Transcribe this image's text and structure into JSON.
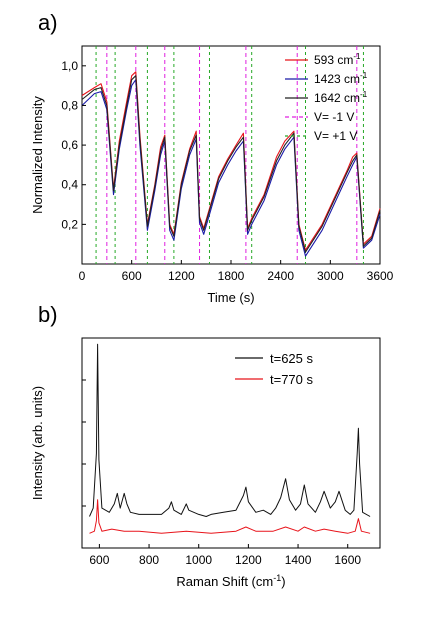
{
  "panels": {
    "a_label": "a)",
    "b_label": "b)"
  },
  "chart_data": [
    {
      "type": "line",
      "xlabel": "Time (s)",
      "ylabel": "Normalized Intensity",
      "xlim": [
        0,
        3600
      ],
      "ylim": [
        0,
        1.1
      ],
      "xticks": [
        "0",
        "600",
        "1200",
        "1800",
        "2400",
        "3000",
        "3600"
      ],
      "yticks": [
        "0,2",
        "0,4",
        "0,6",
        "0,8",
        "1,0"
      ],
      "legend_position": "top-right",
      "series": [
        {
          "name": "593 cm",
          "name_superscript": "-1",
          "color": "#e8141b",
          "x": [
            0,
            150,
            230,
            300,
            380,
            450,
            540,
            600,
            650,
            700,
            790,
            880,
            950,
            1000,
            1060,
            1110,
            1200,
            1300,
            1380,
            1420,
            1470,
            1540,
            1650,
            1760,
            1860,
            1950,
            2000,
            2050,
            2200,
            2350,
            2450,
            2560,
            2620,
            2700,
            2900,
            3100,
            3200,
            3270,
            3320,
            3400,
            3500,
            3600
          ],
          "y": [
            0.85,
            0.89,
            0.91,
            0.82,
            0.38,
            0.62,
            0.82,
            0.95,
            0.97,
            0.65,
            0.2,
            0.4,
            0.59,
            0.65,
            0.2,
            0.15,
            0.41,
            0.58,
            0.67,
            0.24,
            0.18,
            0.28,
            0.44,
            0.53,
            0.6,
            0.66,
            0.18,
            0.23,
            0.35,
            0.54,
            0.62,
            0.67,
            0.2,
            0.07,
            0.2,
            0.38,
            0.47,
            0.54,
            0.56,
            0.1,
            0.14,
            0.28
          ]
        },
        {
          "name": "1423 cm",
          "name_superscript": "-1",
          "color": "#1a1aa8",
          "x": [
            0,
            150,
            230,
            300,
            380,
            450,
            540,
            600,
            650,
            700,
            790,
            880,
            950,
            1000,
            1060,
            1110,
            1200,
            1300,
            1380,
            1420,
            1470,
            1540,
            1650,
            1760,
            1860,
            1950,
            2000,
            2050,
            2200,
            2350,
            2450,
            2560,
            2620,
            2700,
            2900,
            3100,
            3200,
            3270,
            3320,
            3400,
            3500,
            3600
          ],
          "y": [
            0.8,
            0.86,
            0.87,
            0.78,
            0.35,
            0.58,
            0.78,
            0.9,
            0.93,
            0.6,
            0.17,
            0.37,
            0.55,
            0.62,
            0.17,
            0.12,
            0.38,
            0.55,
            0.63,
            0.21,
            0.15,
            0.25,
            0.41,
            0.5,
            0.57,
            0.62,
            0.15,
            0.2,
            0.32,
            0.5,
            0.58,
            0.64,
            0.17,
            0.04,
            0.17,
            0.35,
            0.44,
            0.5,
            0.54,
            0.08,
            0.12,
            0.25
          ]
        },
        {
          "name": "1642 cm",
          "name_superscript": "-1",
          "color": "#222222",
          "x": [
            0,
            150,
            230,
            300,
            380,
            450,
            540,
            600,
            650,
            700,
            790,
            880,
            950,
            1000,
            1060,
            1110,
            1200,
            1300,
            1380,
            1420,
            1470,
            1540,
            1650,
            1760,
            1860,
            1950,
            2000,
            2050,
            2200,
            2350,
            2450,
            2560,
            2620,
            2700,
            2900,
            3100,
            3200,
            3270,
            3320,
            3400,
            3500,
            3600
          ],
          "y": [
            0.83,
            0.88,
            0.89,
            0.8,
            0.37,
            0.6,
            0.8,
            0.93,
            0.95,
            0.63,
            0.19,
            0.39,
            0.57,
            0.64,
            0.19,
            0.14,
            0.4,
            0.57,
            0.65,
            0.23,
            0.17,
            0.27,
            0.43,
            0.52,
            0.59,
            0.64,
            0.17,
            0.22,
            0.34,
            0.52,
            0.6,
            0.66,
            0.19,
            0.06,
            0.19,
            0.37,
            0.46,
            0.52,
            0.55,
            0.09,
            0.13,
            0.27
          ]
        }
      ],
      "markers": [
        {
          "name": "V= -1 V",
          "color": "#e020e0",
          "x": [
            300,
            650,
            1000,
            1420,
            1980,
            2600,
            3320
          ]
        },
        {
          "name": "V= +1 V",
          "color": "#26a826",
          "x": [
            170,
            400,
            790,
            1110,
            1540,
            2050,
            2700,
            3400
          ]
        }
      ]
    },
    {
      "type": "line",
      "xlabel": "Raman Shift (cm",
      "xlabel_superscript": "-1",
      "xlabel_suffix": ")",
      "ylabel": "Intensity (arb. units)",
      "xlim": [
        530,
        1730
      ],
      "ylim": [
        0,
        1
      ],
      "xticks": [
        "600",
        "800",
        "1000",
        "1200",
        "1400",
        "1600"
      ],
      "legend_position": "top-right",
      "series": [
        {
          "name": "t=625 s",
          "color": "#111111",
          "x": [
            560,
            575,
            588,
            593,
            598,
            610,
            640,
            660,
            672,
            684,
            700,
            711,
            725,
            760,
            800,
            850,
            880,
            890,
            900,
            930,
            950,
            960,
            1000,
            1030,
            1050,
            1100,
            1150,
            1180,
            1190,
            1200,
            1230,
            1260,
            1290,
            1310,
            1330,
            1350,
            1365,
            1390,
            1410,
            1425,
            1440,
            1470,
            1490,
            1505,
            1530,
            1550,
            1565,
            1590,
            1610,
            1625,
            1638,
            1643,
            1648,
            1660,
            1690
          ],
          "y": [
            0.15,
            0.19,
            0.45,
            0.97,
            0.42,
            0.19,
            0.17,
            0.21,
            0.26,
            0.19,
            0.26,
            0.21,
            0.17,
            0.16,
            0.16,
            0.16,
            0.19,
            0.22,
            0.18,
            0.16,
            0.21,
            0.18,
            0.16,
            0.15,
            0.16,
            0.17,
            0.18,
            0.25,
            0.29,
            0.22,
            0.17,
            0.18,
            0.16,
            0.19,
            0.24,
            0.33,
            0.23,
            0.18,
            0.21,
            0.3,
            0.21,
            0.17,
            0.22,
            0.27,
            0.19,
            0.22,
            0.27,
            0.18,
            0.16,
            0.18,
            0.45,
            0.57,
            0.4,
            0.17,
            0.15
          ]
        },
        {
          "name": "t=770 s",
          "color": "#e8141b",
          "x": [
            560,
            580,
            588,
            593,
            598,
            610,
            650,
            700,
            760,
            850,
            950,
            1050,
            1150,
            1190,
            1230,
            1300,
            1350,
            1400,
            1425,
            1470,
            1505,
            1550,
            1600,
            1630,
            1643,
            1655,
            1690
          ],
          "y": [
            0.07,
            0.08,
            0.13,
            0.23,
            0.12,
            0.08,
            0.09,
            0.08,
            0.08,
            0.07,
            0.08,
            0.07,
            0.08,
            0.1,
            0.08,
            0.08,
            0.1,
            0.08,
            0.1,
            0.08,
            0.09,
            0.08,
            0.07,
            0.08,
            0.14,
            0.08,
            0.07
          ]
        }
      ]
    }
  ]
}
